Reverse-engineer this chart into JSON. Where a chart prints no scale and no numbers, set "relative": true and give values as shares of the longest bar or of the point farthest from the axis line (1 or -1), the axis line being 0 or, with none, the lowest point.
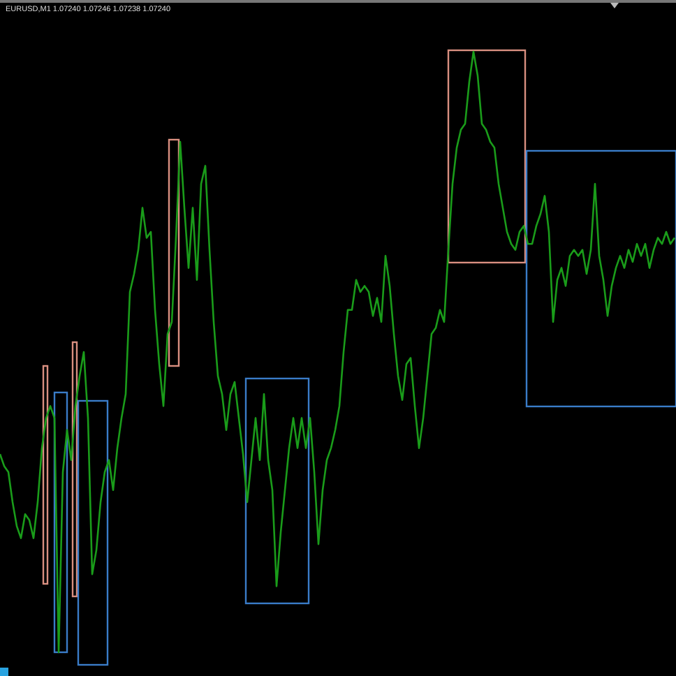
{
  "chart_data": {
    "type": "line",
    "title": "EURUSD,M1 1.07240 1.07246 1.07238 1.07240",
    "relative": true,
    "marker": "none",
    "line_style": "solid",
    "categories": [
      null,
      null,
      null,
      null,
      null,
      null,
      null,
      null,
      null,
      null,
      null,
      null,
      null,
      null,
      null,
      null,
      null,
      null,
      null,
      null,
      null,
      null,
      null,
      null,
      null,
      null,
      null,
      null,
      null,
      null,
      null,
      null,
      null,
      null,
      null,
      null,
      null,
      null,
      null,
      null,
      null,
      null,
      null,
      null,
      null,
      null,
      null,
      null,
      null,
      null,
      null,
      null,
      null,
      null,
      null,
      null,
      null,
      null,
      null,
      null,
      null,
      null,
      null,
      null,
      null,
      null,
      null,
      null,
      null,
      null,
      null,
      null,
      null,
      null,
      null,
      null,
      null,
      null,
      null,
      null,
      null,
      null,
      null,
      null,
      null,
      null,
      null,
      null,
      null,
      null,
      null,
      null,
      null,
      null,
      null,
      null,
      null,
      null,
      null,
      null,
      null,
      null,
      null,
      null,
      null,
      null,
      null,
      null,
      null,
      null,
      null,
      null,
      null,
      null,
      null,
      null,
      null,
      null,
      null,
      null,
      null,
      null,
      null,
      null,
      null,
      null,
      null,
      null,
      null,
      null,
      null,
      null,
      null,
      null,
      null,
      null,
      null,
      null,
      null,
      null,
      null,
      null,
      null,
      null,
      null,
      null,
      null,
      null,
      null,
      null,
      null,
      null,
      null,
      null,
      null,
      null,
      null,
      null,
      null,
      null,
      null,
      null
    ],
    "series": [
      {
        "color": "#1a9c1a",
        "values": [
          0.33,
          0.31,
          0.3,
          0.25,
          0.21,
          0.19,
          0.23,
          0.22,
          0.19,
          0.25,
          0.34,
          0.39,
          0.41,
          0.39,
          0,
          0.3,
          0.37,
          0.32,
          0.41,
          0.46,
          0.5,
          0.39,
          0.13,
          0.17,
          0.25,
          0.3,
          0.32,
          0.27,
          0.34,
          0.39,
          0.43,
          0.6,
          0.63,
          0.67,
          0.74,
          0.69,
          0.7,
          0.57,
          0.48,
          0.41,
          0.53,
          0.55,
          0.69,
          0.85,
          0.74,
          0.64,
          0.74,
          0.62,
          0.78,
          0.81,
          0.67,
          0.55,
          0.46,
          0.43,
          0.37,
          0.43,
          0.45,
          0.39,
          0.33,
          0.25,
          0.32,
          0.39,
          0.32,
          0.43,
          0.32,
          0.27,
          0.11,
          0.2,
          0.27,
          0.34,
          0.39,
          0.34,
          0.39,
          0.34,
          0.39,
          0.3,
          0.18,
          0.27,
          0.32,
          0.34,
          0.37,
          0.41,
          0.5,
          0.57,
          0.57,
          0.62,
          0.6,
          0.61,
          0.6,
          0.56,
          0.59,
          0.55,
          0.66,
          0.61,
          0.53,
          0.46,
          0.42,
          0.48,
          0.49,
          0.41,
          0.34,
          0.39,
          0.46,
          0.53,
          0.54,
          0.57,
          0.55,
          0.67,
          0.78,
          0.84,
          0.87,
          0.88,
          0.95,
          1,
          0.96,
          0.88,
          0.87,
          0.85,
          0.84,
          0.78,
          0.74,
          0.7,
          0.68,
          0.67,
          0.7,
          0.71,
          0.68,
          0.68,
          0.71,
          0.73,
          0.76,
          0.7,
          0.55,
          0.62,
          0.64,
          0.61,
          0.66,
          0.67,
          0.66,
          0.67,
          0.63,
          0.67,
          0.78,
          0.66,
          0.62,
          0.56,
          0.61,
          0.64,
          0.66,
          0.64,
          0.67,
          0.65,
          0.68,
          0.66,
          0.68,
          0.64,
          0.67,
          0.69,
          0.68,
          0.7,
          0.68,
          0.69
        ]
      }
    ]
  }
}
